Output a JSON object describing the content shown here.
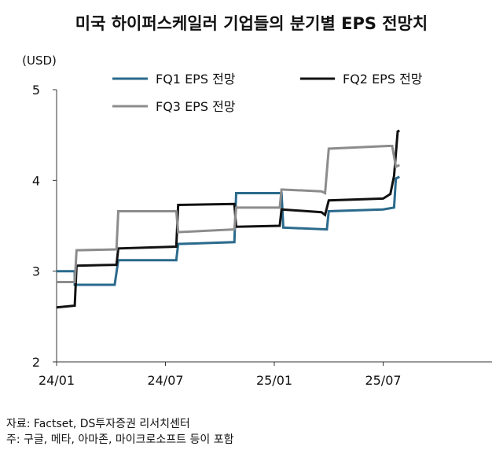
{
  "title": "미국 하이퍼스케일러 기업들의 분기별 EPS 전망치",
  "source": "자료: Factset, DS투자증권 리서치센터",
  "footnote": "주: 구글, 메타, 아마존, 마이크로소프트 등이 포함",
  "chart_data": {
    "type": "line",
    "title": "미국 하이퍼스케일러 기업들의 분기별 EPS 전망치",
    "ylabel": "(USD)",
    "xlabel": "",
    "ylim": [
      2,
      5
    ],
    "yticks": [
      2,
      3,
      4,
      5
    ],
    "xticks": [
      {
        "label": "24/01",
        "x": 0
      },
      {
        "label": "24/07",
        "x": 6
      },
      {
        "label": "25/01",
        "x": 12
      },
      {
        "label": "25/07",
        "x": 18
      }
    ],
    "x_unit": "months since 24/01",
    "xlim": [
      0,
      24
    ],
    "legend_position": "top",
    "grid": false,
    "series": [
      {
        "name": "FQ1 EPS 전망",
        "color": "#2a6a8c",
        "points": [
          [
            0,
            3.0
          ],
          [
            1.0,
            3.0
          ],
          [
            1.0,
            2.85
          ],
          [
            3.2,
            2.85
          ],
          [
            3.4,
            3.12
          ],
          [
            6.6,
            3.12
          ],
          [
            6.7,
            3.3
          ],
          [
            9.8,
            3.32
          ],
          [
            9.9,
            3.86
          ],
          [
            12.4,
            3.86
          ],
          [
            12.5,
            3.48
          ],
          [
            14.9,
            3.46
          ],
          [
            15.0,
            3.66
          ],
          [
            18.0,
            3.68
          ],
          [
            18.6,
            3.7
          ],
          [
            18.7,
            4.02
          ],
          [
            18.9,
            4.04
          ]
        ]
      },
      {
        "name": "FQ2 EPS 전망",
        "color": "#111111",
        "points": [
          [
            0,
            2.6
          ],
          [
            1.0,
            2.62
          ],
          [
            1.1,
            3.06
          ],
          [
            3.3,
            3.07
          ],
          [
            3.4,
            3.25
          ],
          [
            6.6,
            3.27
          ],
          [
            6.7,
            3.73
          ],
          [
            9.8,
            3.74
          ],
          [
            9.9,
            3.49
          ],
          [
            12.3,
            3.5
          ],
          [
            12.4,
            3.68
          ],
          [
            14.6,
            3.65
          ],
          [
            14.8,
            3.62
          ],
          [
            15.0,
            3.78
          ],
          [
            18.0,
            3.8
          ],
          [
            18.4,
            3.85
          ],
          [
            18.6,
            4.05
          ],
          [
            18.8,
            4.54
          ],
          [
            18.9,
            4.55
          ]
        ]
      },
      {
        "name": "FQ3 EPS 전망",
        "color": "#8c8c8c",
        "points": [
          [
            0,
            2.88
          ],
          [
            1.0,
            2.88
          ],
          [
            1.1,
            3.23
          ],
          [
            3.3,
            3.24
          ],
          [
            3.4,
            3.66
          ],
          [
            6.6,
            3.66
          ],
          [
            6.7,
            3.43
          ],
          [
            9.8,
            3.46
          ],
          [
            9.9,
            3.7
          ],
          [
            12.3,
            3.7
          ],
          [
            12.4,
            3.9
          ],
          [
            14.6,
            3.88
          ],
          [
            14.8,
            3.86
          ],
          [
            15.0,
            4.35
          ],
          [
            18.3,
            4.38
          ],
          [
            18.5,
            4.38
          ],
          [
            18.7,
            4.15
          ],
          [
            18.9,
            4.17
          ]
        ]
      }
    ]
  }
}
